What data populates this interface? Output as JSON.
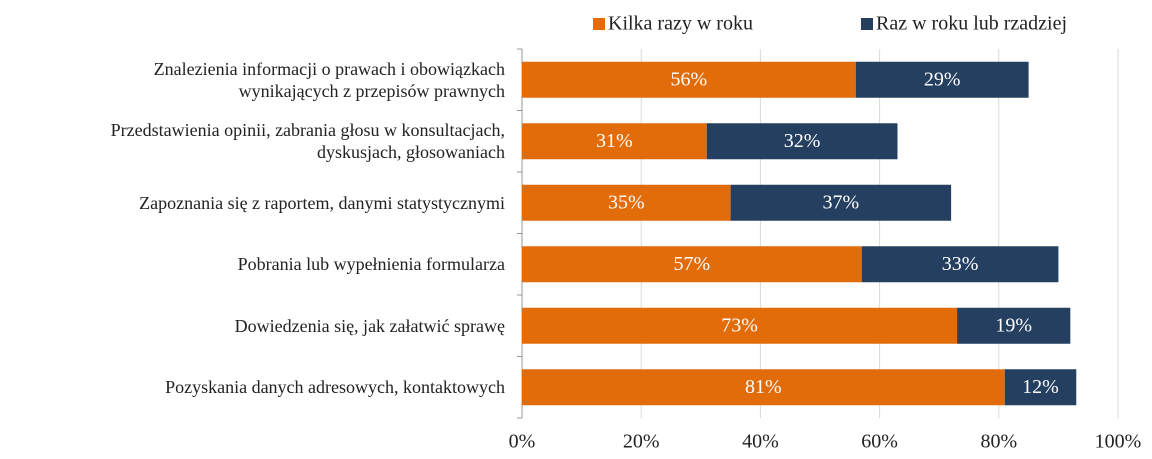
{
  "chart_data": {
    "type": "stacked-bar-horizontal",
    "categories": [
      "Znalezienia informacji o prawach i obowiązkach\nwynikających z przepisów prawnych",
      "Przedstawienia opinii, zabrania głosu w konsultacjach,\ndyskusjach, głosowaniach",
      "Zapoznania się z raportem, danymi statystycznymi",
      "Pobrania lub wypełnienia formularza",
      "Dowiedzenia się, jak załatwić sprawę",
      "Pozyskania danych adresowych, kontaktowych"
    ],
    "series": [
      {
        "name": "Kilka razy w roku",
        "color": "#e36c0a",
        "values": [
          56,
          31,
          35,
          57,
          73,
          81
        ],
        "value_labels": [
          "56%",
          "31%",
          "35%",
          "57%",
          "73%",
          "81%"
        ]
      },
      {
        "name": "Raz w roku lub rzadziej",
        "color": "#243f60",
        "values": [
          29,
          32,
          37,
          33,
          19,
          12
        ],
        "value_labels": [
          "29%",
          "32%",
          "37%",
          "33%",
          "19%",
          "12%"
        ]
      }
    ],
    "xlim": [
      0,
      100
    ],
    "xticks": [
      {
        "value": 0,
        "label": "0%"
      },
      {
        "value": 20,
        "label": "20%"
      },
      {
        "value": 40,
        "label": "40%"
      },
      {
        "value": 60,
        "label": "60%"
      },
      {
        "value": 80,
        "label": "80%"
      },
      {
        "value": 100,
        "label": "100%"
      }
    ],
    "grid": true,
    "legend": "top"
  }
}
